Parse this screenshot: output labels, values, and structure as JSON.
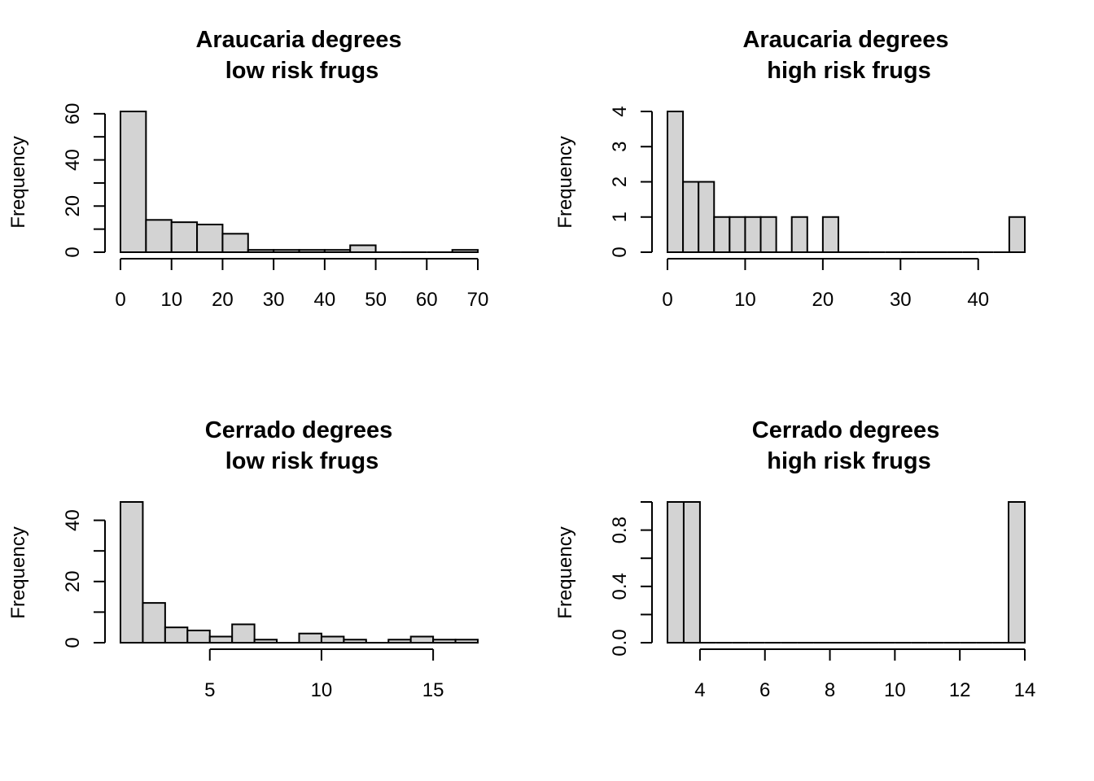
{
  "chart_data": [
    {
      "type": "bar",
      "title_line1": "Araucaria degrees",
      "title_line2": "low risk frugs",
      "ylabel": "Frequency",
      "xlabel": "",
      "xlim": [
        0,
        70
      ],
      "ylim": [
        0,
        61
      ],
      "xticks": [
        0,
        10,
        20,
        30,
        40,
        50,
        60,
        70
      ],
      "yticks": [
        0,
        20,
        40,
        60
      ],
      "yminor": [
        10,
        30,
        50
      ],
      "bins": [
        {
          "x0": 0,
          "x1": 5,
          "count": 61
        },
        {
          "x0": 5,
          "x1": 10,
          "count": 14
        },
        {
          "x0": 10,
          "x1": 15,
          "count": 13
        },
        {
          "x0": 15,
          "x1": 20,
          "count": 12
        },
        {
          "x0": 20,
          "x1": 25,
          "count": 8
        },
        {
          "x0": 25,
          "x1": 30,
          "count": 1
        },
        {
          "x0": 30,
          "x1": 35,
          "count": 1
        },
        {
          "x0": 35,
          "x1": 40,
          "count": 1
        },
        {
          "x0": 40,
          "x1": 45,
          "count": 1
        },
        {
          "x0": 45,
          "x1": 50,
          "count": 3
        },
        {
          "x0": 50,
          "x1": 55,
          "count": 0
        },
        {
          "x0": 55,
          "x1": 60,
          "count": 0
        },
        {
          "x0": 60,
          "x1": 65,
          "count": 0
        },
        {
          "x0": 65,
          "x1": 70,
          "count": 1
        }
      ]
    },
    {
      "type": "bar",
      "title_line1": "Araucaria degrees",
      "title_line2": "high risk frugs",
      "ylabel": "Frequency",
      "xlabel": "",
      "xlim": [
        0,
        46
      ],
      "ylim": [
        0,
        4
      ],
      "xticks": [
        0,
        10,
        20,
        30,
        40
      ],
      "yticks": [
        0,
        1,
        2,
        3,
        4
      ],
      "yminor": [],
      "bins": [
        {
          "x0": 0,
          "x1": 2,
          "count": 4
        },
        {
          "x0": 2,
          "x1": 4,
          "count": 2
        },
        {
          "x0": 4,
          "x1": 6,
          "count": 2
        },
        {
          "x0": 6,
          "x1": 8,
          "count": 1
        },
        {
          "x0": 8,
          "x1": 10,
          "count": 1
        },
        {
          "x0": 10,
          "x1": 12,
          "count": 1
        },
        {
          "x0": 12,
          "x1": 14,
          "count": 1
        },
        {
          "x0": 14,
          "x1": 16,
          "count": 0
        },
        {
          "x0": 16,
          "x1": 18,
          "count": 1
        },
        {
          "x0": 18,
          "x1": 20,
          "count": 0
        },
        {
          "x0": 20,
          "x1": 22,
          "count": 1
        },
        {
          "x0": 22,
          "x1": 24,
          "count": 0
        },
        {
          "x0": 24,
          "x1": 26,
          "count": 0
        },
        {
          "x0": 26,
          "x1": 28,
          "count": 0
        },
        {
          "x0": 28,
          "x1": 30,
          "count": 0
        },
        {
          "x0": 30,
          "x1": 32,
          "count": 0
        },
        {
          "x0": 32,
          "x1": 34,
          "count": 0
        },
        {
          "x0": 34,
          "x1": 36,
          "count": 0
        },
        {
          "x0": 36,
          "x1": 38,
          "count": 0
        },
        {
          "x0": 38,
          "x1": 40,
          "count": 0
        },
        {
          "x0": 40,
          "x1": 42,
          "count": 0
        },
        {
          "x0": 42,
          "x1": 44,
          "count": 0
        },
        {
          "x0": 44,
          "x1": 46,
          "count": 1
        }
      ]
    },
    {
      "type": "bar",
      "title_line1": "Cerrado degrees",
      "title_line2": "low risk frugs",
      "ylabel": "Frequency",
      "xlabel": "",
      "xlim": [
        1,
        17
      ],
      "ylim": [
        0,
        46
      ],
      "xticks": [
        5,
        10,
        15
      ],
      "yticks": [
        0,
        20,
        40
      ],
      "yminor": [
        10,
        30
      ],
      "bins": [
        {
          "x0": 1,
          "x1": 2,
          "count": 46
        },
        {
          "x0": 2,
          "x1": 3,
          "count": 13
        },
        {
          "x0": 3,
          "x1": 4,
          "count": 5
        },
        {
          "x0": 4,
          "x1": 5,
          "count": 4
        },
        {
          "x0": 5,
          "x1": 6,
          "count": 2
        },
        {
          "x0": 6,
          "x1": 7,
          "count": 6
        },
        {
          "x0": 7,
          "x1": 8,
          "count": 1
        },
        {
          "x0": 8,
          "x1": 9,
          "count": 0
        },
        {
          "x0": 9,
          "x1": 10,
          "count": 3
        },
        {
          "x0": 10,
          "x1": 11,
          "count": 2
        },
        {
          "x0": 11,
          "x1": 12,
          "count": 1
        },
        {
          "x0": 12,
          "x1": 13,
          "count": 0
        },
        {
          "x0": 13,
          "x1": 14,
          "count": 1
        },
        {
          "x0": 14,
          "x1": 15,
          "count": 2
        },
        {
          "x0": 15,
          "x1": 16,
          "count": 1
        },
        {
          "x0": 16,
          "x1": 17,
          "count": 1
        }
      ]
    },
    {
      "type": "bar",
      "title_line1": "Cerrado degrees",
      "title_line2": "high risk frugs",
      "ylabel": "Frequency",
      "xlabel": "",
      "xlim": [
        3,
        14
      ],
      "ylim": [
        0,
        1
      ],
      "xticks": [
        4,
        6,
        8,
        10,
        12,
        14
      ],
      "yticks": [
        0.0,
        0.4,
        0.8
      ],
      "yticklabels": [
        "0.0",
        "0.4",
        "0.8"
      ],
      "yminor": [
        0.2,
        0.6,
        1.0
      ],
      "bins": [
        {
          "x0": 3,
          "x1": 3.5,
          "count": 1
        },
        {
          "x0": 3.5,
          "x1": 4,
          "count": 1
        },
        {
          "x0": 4,
          "x1": 4.5,
          "count": 0
        },
        {
          "x0": 4.5,
          "x1": 5,
          "count": 0
        },
        {
          "x0": 5,
          "x1": 5.5,
          "count": 0
        },
        {
          "x0": 5.5,
          "x1": 6,
          "count": 0
        },
        {
          "x0": 6,
          "x1": 6.5,
          "count": 0
        },
        {
          "x0": 6.5,
          "x1": 7,
          "count": 0
        },
        {
          "x0": 7,
          "x1": 7.5,
          "count": 0
        },
        {
          "x0": 7.5,
          "x1": 8,
          "count": 0
        },
        {
          "x0": 8,
          "x1": 8.5,
          "count": 0
        },
        {
          "x0": 8.5,
          "x1": 9,
          "count": 0
        },
        {
          "x0": 9,
          "x1": 9.5,
          "count": 0
        },
        {
          "x0": 9.5,
          "x1": 10,
          "count": 0
        },
        {
          "x0": 10,
          "x1": 10.5,
          "count": 0
        },
        {
          "x0": 10.5,
          "x1": 11,
          "count": 0
        },
        {
          "x0": 11,
          "x1": 11.5,
          "count": 0
        },
        {
          "x0": 11.5,
          "x1": 12,
          "count": 0
        },
        {
          "x0": 12,
          "x1": 12.5,
          "count": 0
        },
        {
          "x0": 12.5,
          "x1": 13,
          "count": 0
        },
        {
          "x0": 13,
          "x1": 13.5,
          "count": 0
        },
        {
          "x0": 13.5,
          "x1": 14,
          "count": 1
        }
      ]
    }
  ]
}
